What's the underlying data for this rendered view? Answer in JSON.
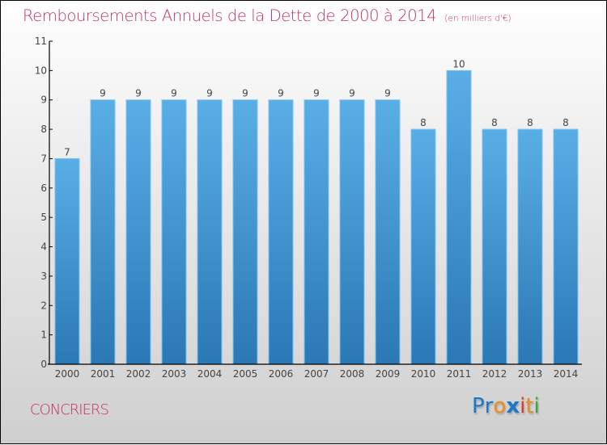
{
  "header": {
    "title": "Remboursements Annuels de la Dette de 2000 à 2014",
    "subtitle": "(en milliers d'€)"
  },
  "footer": {
    "commune": "CONCRIERS",
    "logo": {
      "letters": [
        {
          "char": "P",
          "color": "#1a78c8"
        },
        {
          "char": "r",
          "color": "#1a78c8"
        },
        {
          "char": "o",
          "color": "#f08a1c"
        },
        {
          "char": "x",
          "color": "#1a78c8"
        },
        {
          "char": "i",
          "color": "#e03a2a"
        },
        {
          "char": "t",
          "color": "#f08a1c"
        },
        {
          "char": "i",
          "color": "#3aa53a"
        }
      ]
    }
  },
  "colors": {
    "title": "#c0325f",
    "bar_top": "#5aaee6",
    "bar_bottom": "#2a78b6",
    "bar_edge": "#7cc2f0"
  },
  "chart_data": {
    "type": "bar",
    "title": "Remboursements Annuels de la Dette de 2000 à 2014",
    "subtitle": "(en milliers d'€)",
    "xlabel": "",
    "ylabel": "",
    "categories": [
      "2000",
      "2001",
      "2002",
      "2003",
      "2004",
      "2005",
      "2006",
      "2007",
      "2008",
      "2009",
      "2010",
      "2011",
      "2012",
      "2013",
      "2014"
    ],
    "values": [
      7,
      9,
      9,
      9,
      9,
      9,
      9,
      9,
      9,
      9,
      8,
      10,
      8,
      8,
      8
    ],
    "data_labels": [
      "7",
      "9",
      "9",
      "9",
      "9",
      "9",
      "9",
      "9",
      "9",
      "9",
      "8",
      "10",
      "8",
      "8",
      "8"
    ],
    "ylim": [
      0,
      11
    ],
    "yticks": [
      0,
      1,
      2,
      3,
      4,
      5,
      6,
      7,
      8,
      9,
      10,
      11
    ],
    "grid": false,
    "legend": "none"
  }
}
